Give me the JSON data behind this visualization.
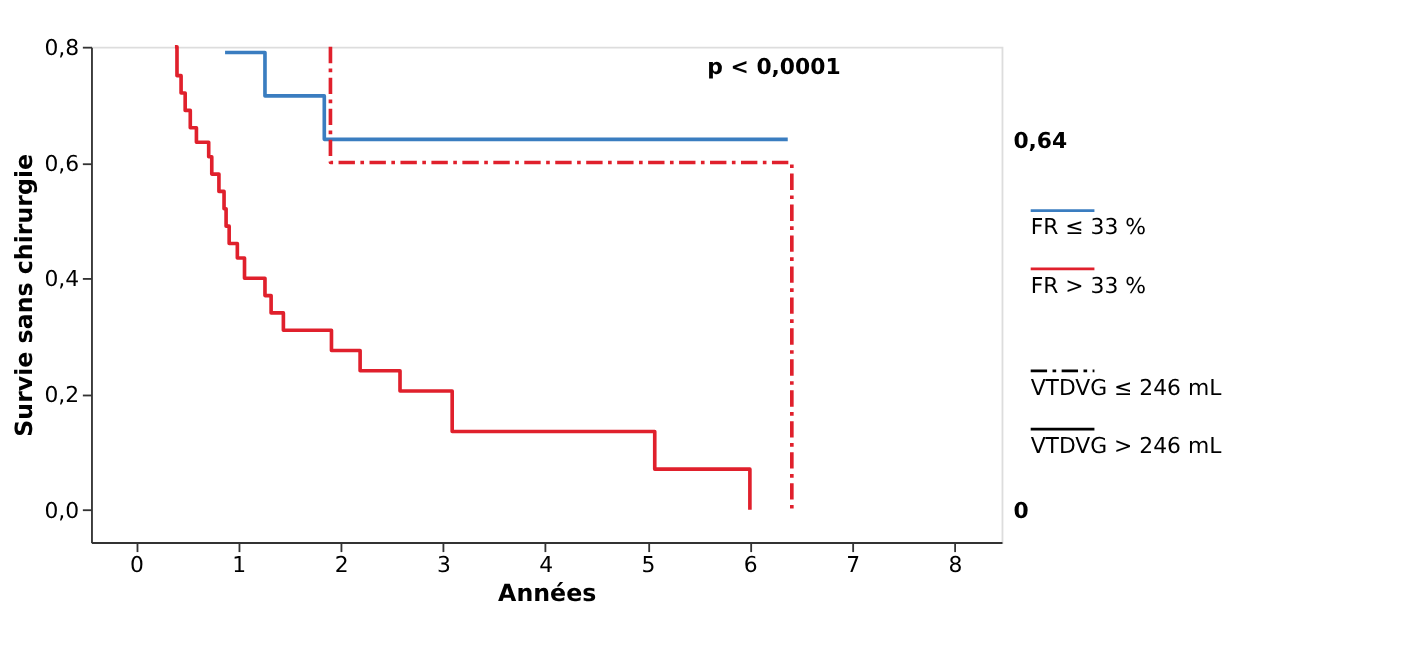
{
  "chart_data": {
    "type": "step",
    "xlabel": "Années",
    "ylabel": "Survie sans chirurgie",
    "annotations": [
      "p < 0,0001"
    ],
    "xlim": [
      -0.44,
      8.46
    ],
    "ylim": [
      -0.056,
      0.8
    ],
    "xticks": [
      0,
      1,
      2,
      3,
      4,
      5,
      6,
      7,
      8
    ],
    "yticks": [
      {
        "value": 0,
        "label": "0,0"
      },
      {
        "value": 0.2,
        "label": "0,2"
      },
      {
        "value": 0.4,
        "label": "0,4"
      },
      {
        "value": 0.6,
        "label": "0,6"
      },
      {
        "value": 0.8,
        "label": "0,8"
      }
    ],
    "y2lim": [
      -0.056,
      0.8
    ],
    "y2ticks": [
      {
        "value": 0.64,
        "label": "0,64"
      },
      {
        "value": 0,
        "label": "0"
      }
    ],
    "grid": false,
    "legend": "right",
    "marker": "none",
    "series": [
      {
        "name": "FR ≤ 33 %",
        "color": "#3a7dc0",
        "line_style": "solid",
        "x": [
          0.87,
          1.26,
          1.84,
          6.37
        ],
        "values": [
          0.79,
          0.715,
          0.64,
          0.64
        ]
      },
      {
        "name": "FR > 33 %",
        "color": "#e0202c",
        "line_style": "solid",
        "x": [
          0.38,
          0.4,
          0.44,
          0.48,
          0.53,
          0.59,
          0.71,
          0.74,
          0.81,
          0.86,
          0.88,
          0.91,
          0.99,
          1.06,
          1.26,
          1.32,
          1.44,
          1.91,
          2.19,
          2.58,
          3.09,
          5.07,
          6.0
        ],
        "values": [
          0.8,
          0.75,
          0.72,
          0.69,
          0.66,
          0.635,
          0.61,
          0.58,
          0.55,
          0.52,
          0.49,
          0.46,
          0.435,
          0.4,
          0.37,
          0.34,
          0.31,
          0.275,
          0.24,
          0.205,
          0.135,
          0.07,
          0
        ]
      },
      {
        "color": "#e0202c",
        "line_style": "dashed",
        "x": [
          1.9,
          1.9,
          6.41,
          6.41
        ],
        "values": [
          0.8,
          0.6,
          0.6,
          0
        ]
      },
      {
        "name": "VTDVG ≤ 246 mL",
        "color": "#000000",
        "line_style": "dashed"
      },
      {
        "name": "VTDVG > 246 mL",
        "color": "#000000",
        "line_style": "solid"
      }
    ]
  }
}
